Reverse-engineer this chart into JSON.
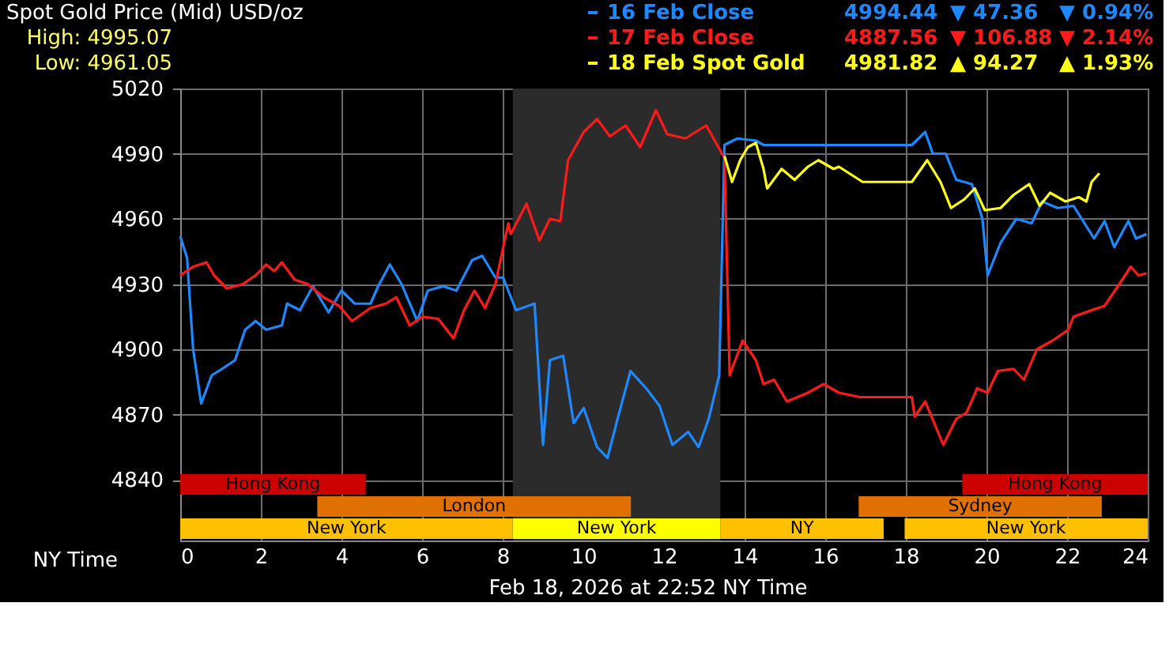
{
  "chart_data": {
    "type": "line",
    "title": "Spot Gold Price (Mid) USD/oz",
    "xlabel": "NY Time",
    "annotations": [
      "High: 4995.07",
      "Low: 4961.05",
      "4994.44",
      "▼ 47.36",
      "▼ 0.94%",
      "4887.56",
      "▼ 106.88",
      "▼ 2.14%",
      "4981.82",
      "▲ 94.27",
      "▲ 1.93%",
      "Feb 18, 2026 at 22:52 NY Time"
    ],
    "xlim": [
      0,
      24
    ],
    "xticks": [
      0,
      2,
      4,
      6,
      8,
      10,
      12,
      14,
      16,
      18,
      20,
      22,
      24
    ],
    "ylim": [
      4812,
      5020
    ],
    "yticks": [
      4840,
      4870,
      4900,
      4930,
      4960,
      4990,
      5020
    ],
    "grid": true,
    "legend": "top right",
    "line_style": "solid",
    "marker": "none",
    "bands": [
      {
        "axis": "x",
        "from": 8.25,
        "to": 13.4,
        "color": "#2b2b2b"
      },
      {
        "axis": "x",
        "from": 0,
        "to": 4.6,
        "label": "Hong Kong",
        "color": "#cc0000"
      },
      {
        "axis": "x",
        "from": 19.4,
        "to": 24,
        "label": "Hong Kong",
        "color": "#cc0000"
      },
      {
        "axis": "x",
        "from": 3.4,
        "to": 11.18,
        "label": "London",
        "color": "#e07000"
      },
      {
        "axis": "x",
        "from": 16.83,
        "to": 22.86,
        "label": "Sydney",
        "color": "#e07000"
      },
      {
        "axis": "x",
        "from": 0,
        "to": 8.25,
        "label": "New York",
        "color": "#ffc000"
      },
      {
        "axis": "x",
        "from": 8.25,
        "to": 13.4,
        "label": "New York",
        "color": "#ffff00"
      },
      {
        "axis": "x",
        "from": 13.4,
        "to": 17.45,
        "label": "NY",
        "color": "#ffc000"
      },
      {
        "axis": "x",
        "from": 17.97,
        "to": 24,
        "label": "New York",
        "color": "#ffc000"
      }
    ],
    "series": [
      {
        "name": "16 Feb Close",
        "color": "#1e88ff",
        "x": [
          0,
          0.17,
          0.32,
          0.52,
          0.78,
          1.04,
          1.36,
          1.61,
          1.87,
          2.13,
          2.52,
          2.65,
          2.97,
          3.29,
          3.68,
          4.0,
          4.33,
          4.72,
          4.91,
          5.2,
          5.49,
          5.88,
          6.14,
          6.52,
          6.85,
          7.24,
          7.49,
          7.82,
          8.01,
          8.33,
          8.79,
          9.0,
          9.17,
          9.5,
          9.76,
          10.01,
          10.34,
          10.6,
          10.85,
          11.17,
          11.56,
          11.89,
          12.21,
          12.6,
          12.86,
          13.11,
          13.37,
          13.5,
          13.82,
          14.28,
          14.47,
          18.15,
          18.48,
          18.67,
          18.99,
          19.25,
          19.64,
          19.9,
          20.03,
          20.35,
          20.74,
          21.12,
          21.38,
          21.77,
          22.16,
          22.67,
          22.93,
          23.17,
          23.52,
          23.71,
          23.97
        ],
        "values": [
          4952,
          4942,
          4900,
          4875,
          4888,
          4891,
          4895,
          4909,
          4913,
          4909,
          4911,
          4921,
          4918,
          4929,
          4917,
          4927,
          4921,
          4921,
          4929,
          4939,
          4930,
          4913,
          4927,
          4929,
          4927,
          4941,
          4943,
          4933,
          4933,
          4918,
          4921,
          4856,
          4895,
          4897,
          4866,
          4873,
          4855,
          4850,
          4868,
          4890,
          4882,
          4874,
          4856,
          4862,
          4855,
          4868,
          4888,
          4994,
          4997,
          4996,
          4994,
          4994,
          5000,
          4990,
          4990,
          4978,
          4976,
          4960,
          4934,
          4949,
          4960,
          4958,
          4968,
          4965,
          4966,
          4951,
          4959,
          4947,
          4959,
          4951,
          4953
        ]
      },
      {
        "name": "17 Feb Close",
        "color": "#ff1a1a",
        "x": [
          0,
          0.32,
          0.65,
          0.84,
          1.16,
          1.55,
          1.87,
          2.13,
          2.33,
          2.52,
          2.84,
          3.17,
          3.55,
          3.94,
          4.26,
          4.72,
          5.1,
          5.36,
          5.69,
          6.01,
          6.4,
          6.78,
          7.04,
          7.3,
          7.56,
          7.82,
          8.14,
          8.2,
          8.59,
          8.91,
          9.17,
          9.43,
          9.62,
          10.01,
          10.34,
          10.66,
          11.05,
          11.41,
          11.8,
          12.08,
          12.53,
          13.05,
          13.5,
          13.63,
          13.95,
          14.28,
          14.47,
          14.73,
          15.05,
          15.57,
          15.96,
          16.34,
          16.86,
          18.15,
          18.22,
          18.48,
          18.93,
          19.25,
          19.51,
          19.77,
          20.03,
          20.28,
          20.67,
          20.93,
          21.25,
          21.64,
          22.03,
          22.16,
          22.61,
          22.93,
          23.26,
          23.58,
          23.77,
          23.97
        ],
        "values": [
          4934,
          4938,
          4940,
          4934,
          4928,
          4930,
          4934,
          4939,
          4936,
          4940,
          4932,
          4930,
          4924,
          4920,
          4913,
          4919,
          4921,
          4924,
          4911,
          4915,
          4914,
          4905,
          4918,
          4927,
          4919,
          4930,
          4958,
          4953,
          4967,
          4950,
          4960,
          4959,
          4987,
          5000,
          5006,
          4998,
          5003,
          4993,
          5010,
          4999,
          4997,
          5003,
          4988,
          4888,
          4904,
          4895,
          4884,
          4886,
          4876,
          4880,
          4884,
          4880,
          4878,
          4878,
          4869,
          4876,
          4856,
          4868,
          4871,
          4882,
          4880,
          4890,
          4891,
          4886,
          4900,
          4904,
          4909,
          4915,
          4918,
          4920,
          4929,
          4938,
          4934,
          4935
        ]
      },
      {
        "name": "18 Feb Spot Gold",
        "color": "#ffff1a",
        "x": [
          13.5,
          13.69,
          13.89,
          14.08,
          14.28,
          14.47,
          14.56,
          14.92,
          15.24,
          15.57,
          15.83,
          16.21,
          16.34,
          16.93,
          18.15,
          18.53,
          18.86,
          19.12,
          19.45,
          19.71,
          19.96,
          20.35,
          20.67,
          21.06,
          21.32,
          21.58,
          21.96,
          22.29,
          22.48,
          22.61,
          22.8
        ],
        "values": [
          4989,
          4977,
          4987,
          4993,
          4995,
          4983,
          4974,
          4983,
          4978,
          4984,
          4987,
          4983,
          4984,
          4977,
          4977,
          4987,
          4977,
          4965,
          4969,
          4974,
          4964,
          4965,
          4971,
          4976,
          4966,
          4972,
          4968,
          4970,
          4968,
          4977,
          4981
        ]
      }
    ]
  }
}
